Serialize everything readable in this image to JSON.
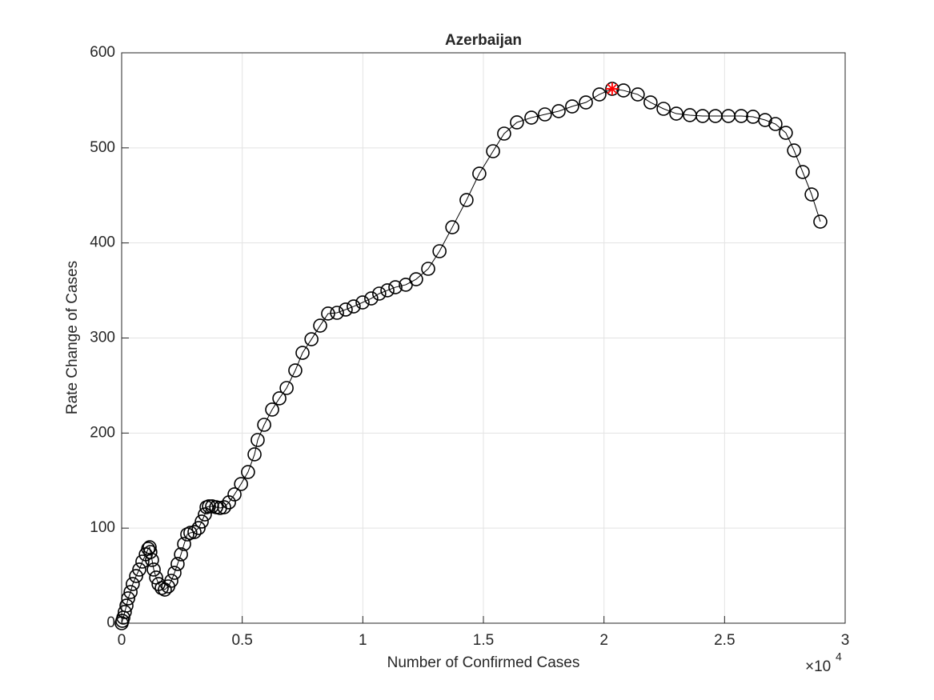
{
  "chart_data": {
    "type": "line",
    "title": "Azerbaijan",
    "x_label": "Number of Confirmed Cases",
    "y_label": "Rate Change of Cases",
    "x_multiplier": {
      "base": "×10",
      "exponent": "4"
    },
    "color": "#000000",
    "marker": "circle",
    "x": [
      0,
      0.003,
      0.007,
      0.013,
      0.02,
      0.027,
      0.037,
      0.046,
      0.06,
      0.073,
      0.086,
      0.1,
      0.11,
      0.116,
      0.119,
      0.126,
      0.133,
      0.143,
      0.153,
      0.166,
      0.179,
      0.193,
      0.206,
      0.219,
      0.232,
      0.246,
      0.259,
      0.272,
      0.285,
      0.302,
      0.319,
      0.332,
      0.345,
      0.352,
      0.362,
      0.375,
      0.392,
      0.408,
      0.425,
      0.445,
      0.468,
      0.495,
      0.524,
      0.551,
      0.564,
      0.591,
      0.624,
      0.654,
      0.684,
      0.72,
      0.75,
      0.787,
      0.823,
      0.856,
      0.893,
      0.929,
      0.962,
      0.999,
      1.035,
      1.068,
      1.102,
      1.135,
      1.178,
      1.221,
      1.271,
      1.318,
      1.371,
      1.43,
      1.483,
      1.54,
      1.586,
      1.639,
      1.699,
      1.755,
      1.812,
      1.868,
      1.925,
      1.981,
      2.034,
      2.081,
      2.14,
      2.193,
      2.247,
      2.3,
      2.356,
      2.409,
      2.462,
      2.516,
      2.569,
      2.618,
      2.668,
      2.711,
      2.754,
      2.788,
      2.824,
      2.861,
      2.897
    ],
    "values": [
      0,
      2.5,
      5.9,
      11.8,
      18.5,
      26.1,
      32.8,
      41.2,
      49.6,
      56.4,
      64.8,
      72.4,
      78.3,
      79.9,
      74.9,
      66.5,
      56.4,
      48.0,
      41.2,
      37.0,
      35.3,
      38.7,
      44.6,
      53.0,
      62.3,
      72.4,
      83.3,
      93.4,
      95.1,
      95.9,
      100.1,
      106.9,
      114.4,
      122.0,
      122.9,
      122.9,
      122.0,
      121.2,
      122.0,
      127.1,
      135.5,
      146.4,
      159.0,
      177.6,
      192.7,
      208.7,
      224.7,
      236.5,
      247.4,
      265.9,
      284.4,
      298.7,
      313.0,
      325.7,
      326.5,
      329.9,
      333.2,
      337.4,
      341.6,
      346.7,
      350.1,
      353.4,
      356.0,
      361.8,
      372.8,
      391.3,
      416.5,
      445.1,
      472.9,
      496.5,
      515.0,
      526.8,
      531.8,
      535.2,
      538.6,
      543.6,
      547.8,
      556.2,
      562.1,
      560.4,
      556.2,
      547.8,
      541.1,
      536.0,
      534.4,
      533.5,
      533.5,
      533.5,
      533.5,
      532.7,
      529.3,
      525.1,
      515.8,
      497.3,
      474.6,
      451.0,
      422.4
    ],
    "highlight": {
      "x": 2.034,
      "y": 562.1,
      "color": "#ff0000"
    },
    "xlim": [
      0,
      3
    ],
    "xticks": [
      0,
      0.5,
      1,
      1.5,
      2,
      2.5,
      3
    ],
    "ylim": [
      0,
      600
    ],
    "yticks": [
      0,
      100,
      200,
      300,
      400,
      500,
      600
    ],
    "grid": true
  }
}
